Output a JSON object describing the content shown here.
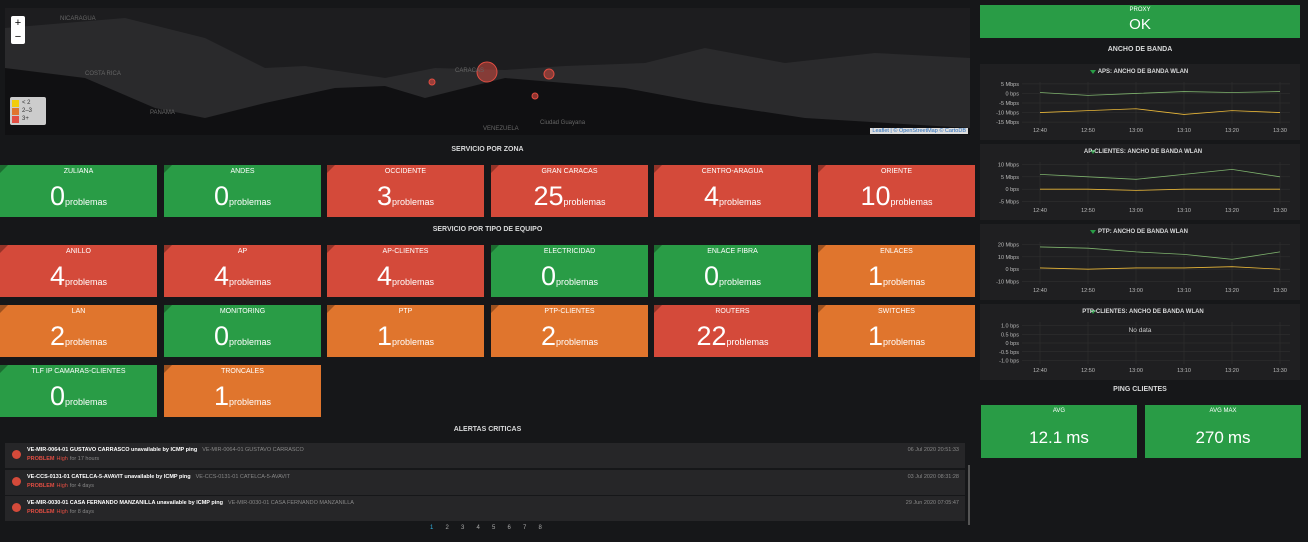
{
  "map": {
    "zoom_in": "+",
    "zoom_out": "−",
    "legend": [
      {
        "label": "< 2",
        "color": "#f2cc0c"
      },
      {
        "label": "2–3",
        "color": "#e0752d"
      },
      {
        "label": "3+",
        "color": "#e24d42"
      }
    ],
    "labels": [
      "NICARAGUA",
      "COSTA RICA",
      "PANAMA",
      "CARACAS",
      "VENEZUELA",
      "Ciudad Guayana"
    ],
    "attribution": "Leaflet | © OpenStreetMap © CartoDB"
  },
  "zone_section": {
    "title": "SERVICIO POR ZONA",
    "panels": [
      {
        "title": "ZULIANA",
        "value": 0,
        "unit": "problemas",
        "color": "#299c46"
      },
      {
        "title": "ANDES",
        "value": 0,
        "unit": "problemas",
        "color": "#299c46"
      },
      {
        "title": "OCCIDENTE",
        "value": 3,
        "unit": "problemas",
        "color": "#d44a3a"
      },
      {
        "title": "GRAN CARACAS",
        "value": 25,
        "unit": "problemas",
        "color": "#d44a3a"
      },
      {
        "title": "CENTRO-ARAGUA",
        "value": 4,
        "unit": "problemas",
        "color": "#d44a3a"
      },
      {
        "title": "ORIENTE",
        "value": 10,
        "unit": "problemas",
        "color": "#d44a3a"
      }
    ]
  },
  "equipment_section": {
    "title": "SERVICIO POR TIPO DE EQUIPO",
    "panels": [
      {
        "title": "ANILLO",
        "value": 4,
        "unit": "problemas",
        "color": "#d44a3a"
      },
      {
        "title": "AP",
        "value": 4,
        "unit": "problemas",
        "color": "#d44a3a"
      },
      {
        "title": "AP-CLIENTES",
        "value": 4,
        "unit": "problemas",
        "color": "#d44a3a"
      },
      {
        "title": "ELECTRICIDAD",
        "value": 0,
        "unit": "problemas",
        "color": "#299c46"
      },
      {
        "title": "ENLACE FIBRA",
        "value": 0,
        "unit": "problemas",
        "color": "#299c46"
      },
      {
        "title": "ENLACES",
        "value": 1,
        "unit": "problemas",
        "color": "#e0752d"
      },
      {
        "title": "LAN",
        "value": 2,
        "unit": "problemas",
        "color": "#e0752d"
      },
      {
        "title": "MONITORING",
        "value": 0,
        "unit": "problemas",
        "color": "#299c46"
      },
      {
        "title": "PTP",
        "value": 1,
        "unit": "problemas",
        "color": "#e0752d"
      },
      {
        "title": "PTP-CLIENTES",
        "value": 2,
        "unit": "problemas",
        "color": "#e0752d"
      },
      {
        "title": "ROUTERS",
        "value": 22,
        "unit": "problemas",
        "color": "#d44a3a"
      },
      {
        "title": "SWITCHES",
        "value": 1,
        "unit": "problemas",
        "color": "#e0752d"
      },
      {
        "title": "TLF IP CAMARAS-CLIENTES",
        "value": 0,
        "unit": "problemas",
        "color": "#299c46"
      },
      {
        "title": "TRONCALES",
        "value": 1,
        "unit": "problemas",
        "color": "#e0752d"
      }
    ]
  },
  "alerts_section": {
    "title": "ALERTAS CRITICAS",
    "alerts": [
      {
        "name": "VE-MIR-0064-01 GUSTAVO CARRASCO unavailable by ICMP ping",
        "host": "VE-MIR-0064-01 GUSTAVO CARRASCO",
        "status": "PROBLEM",
        "severity": "High",
        "age": "for 17 hours",
        "time": "06 Jul 2020 20:51:33"
      },
      {
        "name": "VE-CCS-0131-01 CATELCA-5-AVAVIT unavailable by ICMP ping",
        "host": "VE-CCS-0131-01 CATELCA-5-AVAVIT",
        "status": "PROBLEM",
        "severity": "High",
        "age": "for 4 days",
        "time": "03 Jul 2020 08:31:28"
      },
      {
        "name": "VE-MIR-0030-01 CASA FERNANDO MANZANILLA unavailable by ICMP ping",
        "host": "VE-MIR-0030-01 CASA FERNANDO MANZANILLA",
        "status": "PROBLEM",
        "severity": "High",
        "age": "for 8 days",
        "time": "29 Jun 2020 07:05:47"
      }
    ],
    "pages": [
      1,
      2,
      3,
      4,
      5,
      6,
      7,
      8
    ],
    "current_page": 1
  },
  "proxy": {
    "title": "PROXY",
    "value": "OK",
    "color": "#299c46"
  },
  "bandwidth_section": {
    "title": "ANCHO DE BANDA",
    "charts": [
      {
        "type": "line",
        "title": "APS: ANCHO DE BANDA WLAN",
        "categories": [
          "12:40",
          "12:50",
          "13:00",
          "13:10",
          "13:20",
          "13:30"
        ],
        "ylim": [
          -16,
          6
        ],
        "yticks": [
          {
            "value": 5,
            "label": "5 Mbps"
          },
          {
            "value": 0,
            "label": "0 bps"
          },
          {
            "value": -5,
            "label": "-5 Mbps"
          },
          {
            "value": -10,
            "label": "-10 Mbps"
          },
          {
            "value": -15,
            "label": "-15 Mbps"
          }
        ],
        "series": [
          {
            "color": "#7eb26d",
            "values": [
              0.5,
              -1,
              0,
              1,
              0.5,
              1
            ]
          },
          {
            "color": "#eab839",
            "values": [
              -10,
              -9,
              -8,
              -11,
              -9,
              -10
            ]
          }
        ]
      },
      {
        "type": "line",
        "title": "AP-CLIENTES: ANCHO DE BANDA WLAN",
        "categories": [
          "12:40",
          "12:50",
          "13:00",
          "13:10",
          "13:20",
          "13:30"
        ],
        "ylim": [
          -6,
          11
        ],
        "yticks": [
          {
            "value": 10,
            "label": "10 Mbps"
          },
          {
            "value": 5,
            "label": "5 Mbps"
          },
          {
            "value": 0,
            "label": "0 bps"
          },
          {
            "value": -5,
            "label": "-5 Mbps"
          }
        ],
        "series": [
          {
            "color": "#7eb26d",
            "values": [
              6,
              5,
              4,
              6,
              8,
              5
            ]
          },
          {
            "color": "#eab839",
            "values": [
              0,
              0,
              -0.5,
              0,
              0,
              0
            ]
          }
        ]
      },
      {
        "type": "line",
        "title": "PTP: ANCHO DE BANDA WLAN",
        "categories": [
          "12:40",
          "12:50",
          "13:00",
          "13:10",
          "13:20",
          "13:30"
        ],
        "ylim": [
          -12,
          22
        ],
        "yticks": [
          {
            "value": 20,
            "label": "20 Mbps"
          },
          {
            "value": 10,
            "label": "10 Mbps"
          },
          {
            "value": 0,
            "label": "0 bps"
          },
          {
            "value": -10,
            "label": "-10 Mbps"
          }
        ],
        "series": [
          {
            "color": "#7eb26d",
            "values": [
              18,
              17,
              14,
              12,
              8,
              14
            ]
          },
          {
            "color": "#eab839",
            "values": [
              1,
              0,
              1,
              1,
              2,
              0
            ]
          }
        ]
      },
      {
        "type": "line",
        "title": "PTP-CLIENTES: ANCHO DE BANDA WLAN",
        "categories": [
          "12:40",
          "12:50",
          "13:00",
          "13:10",
          "13:20",
          "13:30"
        ],
        "ylim": [
          -1.2,
          1.2
        ],
        "yticks": [
          {
            "value": 1,
            "label": "1.0 bps"
          },
          {
            "value": 0.5,
            "label": "0.5 bps"
          },
          {
            "value": 0,
            "label": "0 bps"
          },
          {
            "value": -0.5,
            "label": "-0.5 bps"
          },
          {
            "value": -1,
            "label": "-1.0 bps"
          }
        ],
        "no_data": "No data",
        "series": []
      }
    ]
  },
  "ping_section": {
    "title": "PING CLIENTES",
    "panels": [
      {
        "title": "AVG",
        "value": 12.1,
        "unit": "ms",
        "color": "#299c46"
      },
      {
        "title": "AVG MAX",
        "value": 270,
        "unit": "ms",
        "color": "#299c46"
      }
    ]
  }
}
